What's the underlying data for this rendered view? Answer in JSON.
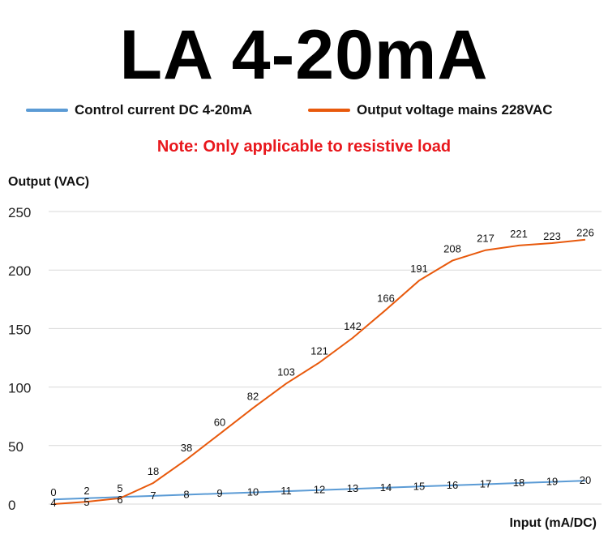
{
  "chart_data": {
    "type": "line",
    "title": "LA 4-20mA",
    "subtitle": "Note: Only applicable to resistive load",
    "ylabel": "Output (VAC)",
    "xlabel": "Input (mA/DC)",
    "ylim": [
      0,
      250
    ],
    "yticks": [
      "250",
      "200",
      "150",
      "100",
      "50",
      "0"
    ],
    "grid": true,
    "legend": "top",
    "series": [
      {
        "name": "Control current DC 4-20mA",
        "color": "#5B9BD5",
        "values": [
          4,
          5,
          6,
          7,
          8,
          9,
          10,
          11,
          12,
          13,
          14,
          15,
          16,
          17,
          18,
          19,
          20
        ]
      },
      {
        "name": "Output voltage mains 228VAC",
        "color": "#E8590C",
        "values": [
          0,
          2,
          5,
          18,
          38,
          60,
          82,
          103,
          121,
          142,
          166,
          191,
          208,
          217,
          221,
          223,
          226
        ]
      }
    ]
  },
  "colors": {
    "note": "#E8171C",
    "grid": "#D9D9D9"
  }
}
